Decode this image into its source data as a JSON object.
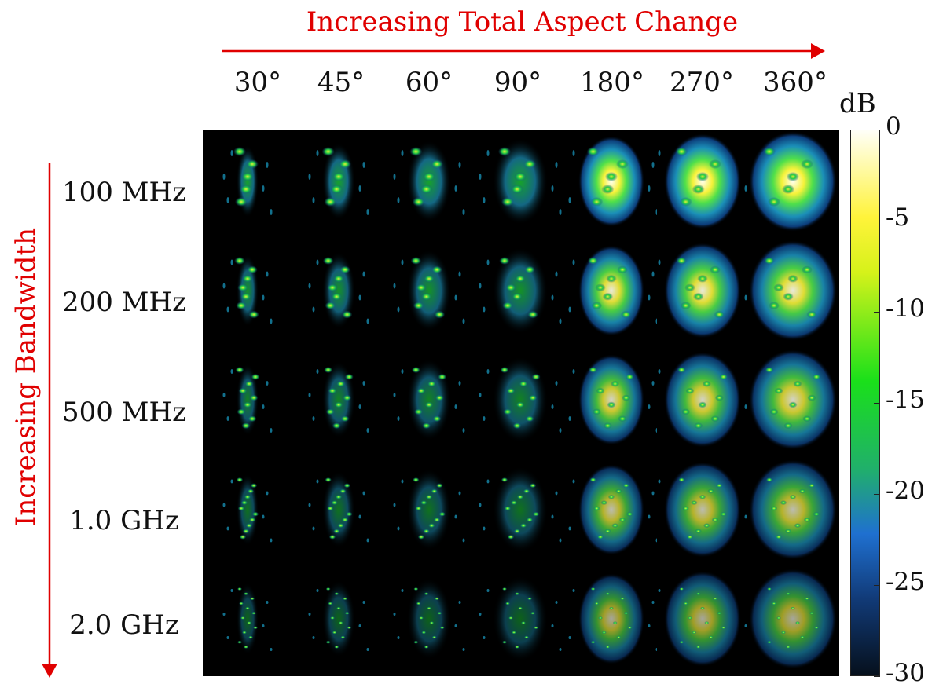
{
  "titles": {
    "top": "Increasing Total Aspect Change",
    "side": "Increasing Bandwidth"
  },
  "columns": [
    "30°",
    "45°",
    "60°",
    "90°",
    "180°",
    "270°",
    "360°"
  ],
  "rows": [
    "100 MHz",
    "200 MHz",
    "500 MHz",
    "1.0 GHz",
    "2.0 GHz"
  ],
  "colorbar": {
    "unit": "dB",
    "ticks": [
      "0",
      "-5",
      "-10",
      "-15",
      "-20",
      "-25",
      "-30"
    ],
    "range": [
      -30,
      0
    ]
  },
  "colors": {
    "annotation": "#e00000"
  }
}
